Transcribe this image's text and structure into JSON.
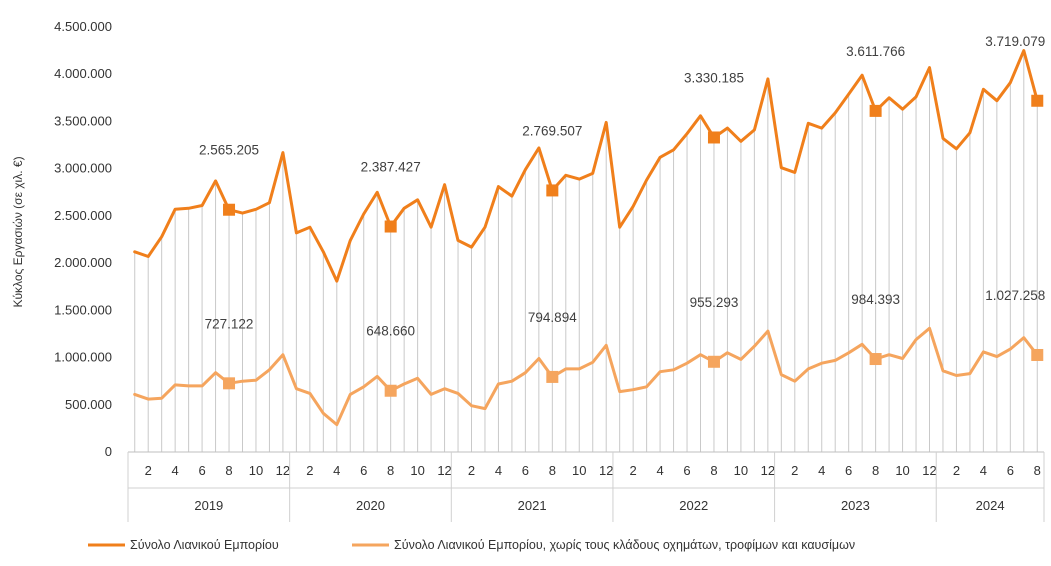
{
  "chart_data": {
    "type": "line",
    "ylabel": "Κύκλος Εργασιών (σε χιλ. €)",
    "ylim": [
      0,
      4500000
    ],
    "yticks": [
      0,
      500000,
      1000000,
      1500000,
      2000000,
      2500000,
      3000000,
      3500000,
      4000000,
      4500000
    ],
    "ytick_labels": [
      "0",
      "500.000",
      "1.000.000",
      "1.500.000",
      "2.000.000",
      "2.500.000",
      "3.000.000",
      "3.500.000",
      "4.000.000",
      "4.500.000"
    ],
    "x_month_labels": [
      "",
      "2",
      "",
      "4",
      "",
      "6",
      "",
      "8",
      "",
      "10",
      "",
      "12",
      "",
      "2",
      "",
      "4",
      "",
      "6",
      "",
      "8",
      "",
      "10",
      "",
      "12",
      "",
      "2",
      "",
      "4",
      "",
      "6",
      "",
      "8",
      "",
      "10",
      "",
      "12",
      "",
      "2",
      "",
      "4",
      "",
      "6",
      "",
      "8",
      "",
      "10",
      "",
      "12",
      "",
      "2",
      "",
      "4",
      "",
      "6",
      "",
      "8",
      "",
      "10",
      "",
      "12",
      "",
      "2",
      "",
      "4",
      "",
      "6",
      "",
      "8"
    ],
    "year_groups": [
      {
        "label": "2019",
        "months": 12
      },
      {
        "label": "2020",
        "months": 12
      },
      {
        "label": "2021",
        "months": 12
      },
      {
        "label": "2022",
        "months": 12
      },
      {
        "label": "2023",
        "months": 12
      },
      {
        "label": "2024",
        "months": 8
      }
    ],
    "grid": "vertical",
    "legend_position": "bottom",
    "series": [
      {
        "name": "Σύνολο Λιανικού Εμπορίου",
        "color": "#F07F1B",
        "values": [
          2120000,
          2070000,
          2280000,
          2570000,
          2580000,
          2610000,
          2870000,
          2565205,
          2530000,
          2570000,
          2640000,
          3170000,
          2320000,
          2380000,
          2120000,
          1810000,
          2240000,
          2520000,
          2750000,
          2387427,
          2580000,
          2670000,
          2380000,
          2830000,
          2240000,
          2170000,
          2380000,
          2810000,
          2710000,
          2990000,
          3220000,
          2769507,
          2930000,
          2890000,
          2950000,
          3490000,
          2380000,
          2600000,
          2880000,
          3120000,
          3200000,
          3370000,
          3560000,
          3330185,
          3430000,
          3290000,
          3410000,
          3950000,
          3010000,
          2960000,
          3480000,
          3430000,
          3590000,
          3790000,
          3990000,
          3611766,
          3750000,
          3630000,
          3760000,
          4070000,
          3320000,
          3210000,
          3380000,
          3840000,
          3720000,
          3910000,
          4250000,
          3719079
        ],
        "labels": [
          {
            "index": 7,
            "text": "2.565.205"
          },
          {
            "index": 19,
            "text": "2.387.427"
          },
          {
            "index": 31,
            "text": "2.769.507"
          },
          {
            "index": 43,
            "text": "3.330.185"
          },
          {
            "index": 55,
            "text": "3.611.766"
          },
          {
            "index": 67,
            "text": "3.719.079"
          }
        ]
      },
      {
        "name": "Σύνολο Λιανικού Εμπορίου, χωρίς τους κλάδους οχημάτων, τροφίμων και καυσίμων",
        "color": "#F5A55E",
        "values": [
          610000,
          560000,
          570000,
          710000,
          700000,
          700000,
          840000,
          727122,
          750000,
          760000,
          870000,
          1030000,
          670000,
          620000,
          410000,
          290000,
          610000,
          690000,
          800000,
          648660,
          720000,
          780000,
          610000,
          670000,
          620000,
          490000,
          460000,
          720000,
          750000,
          840000,
          990000,
          794894,
          880000,
          880000,
          950000,
          1130000,
          640000,
          660000,
          690000,
          850000,
          870000,
          940000,
          1030000,
          955293,
          1050000,
          980000,
          1120000,
          1280000,
          820000,
          750000,
          880000,
          940000,
          970000,
          1050000,
          1140000,
          984393,
          1030000,
          990000,
          1190000,
          1310000,
          860000,
          810000,
          830000,
          1060000,
          1010000,
          1090000,
          1210000,
          1027258
        ],
        "labels": [
          {
            "index": 7,
            "text": "727.122"
          },
          {
            "index": 19,
            "text": "648.660"
          },
          {
            "index": 31,
            "text": "794.894"
          },
          {
            "index": 43,
            "text": "955.293"
          },
          {
            "index": 55,
            "text": "984.393"
          },
          {
            "index": 67,
            "text": "1.027.258"
          }
        ]
      }
    ]
  }
}
